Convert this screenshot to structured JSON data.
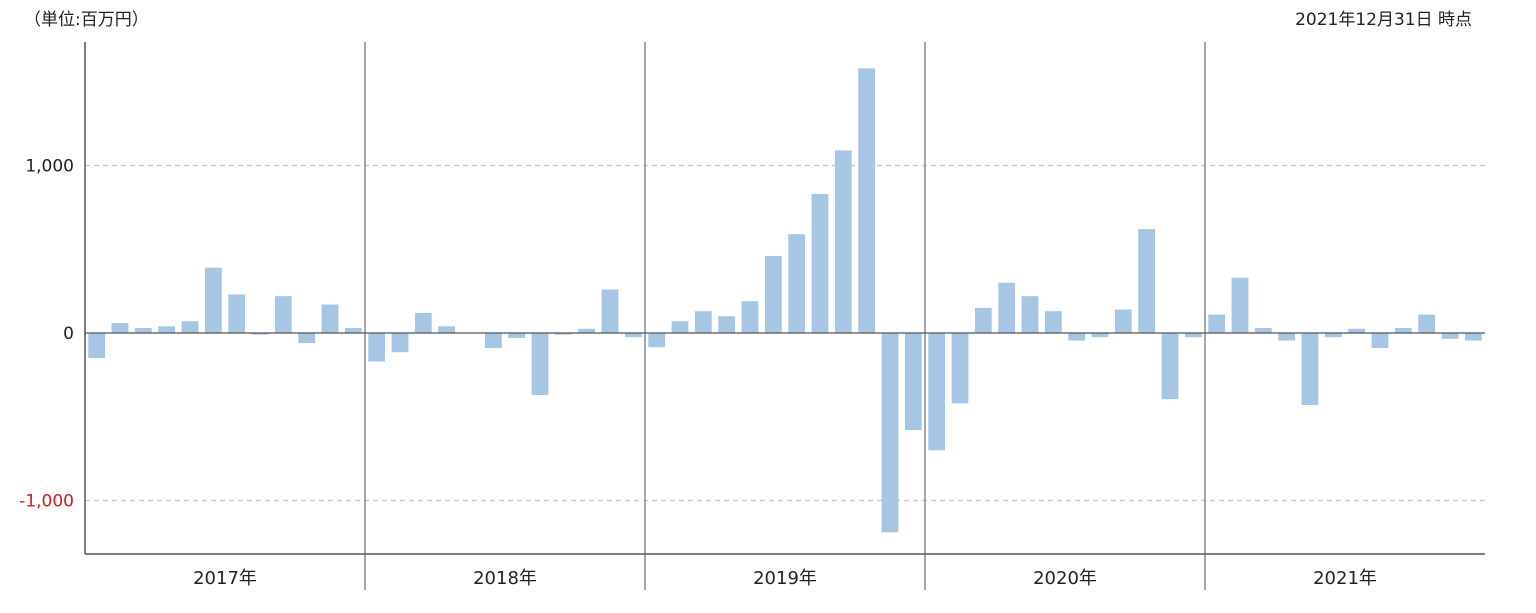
{
  "header": {
    "unit_label": "（単位:百万円）",
    "as_of": "2021年12月31日 時点"
  },
  "chart_data": {
    "type": "bar",
    "title": "",
    "xlabel": "",
    "ylabel": "",
    "ylim": [
      -1300,
      1740
    ],
    "grid": "horizontal-dashed",
    "legend": "none",
    "bar_color": "#a6c6e4",
    "negative_tick_color": "#d11a1a",
    "y_ticks": [
      {
        "value": 1000,
        "label": "1,000"
      },
      {
        "value": 0,
        "label": "0"
      },
      {
        "value": -1000,
        "label": "-1,000"
      }
    ],
    "groups": [
      {
        "label": "2017年",
        "values": [
          -150,
          60,
          30,
          40,
          70,
          390,
          230,
          -10,
          220,
          -60,
          170,
          30
        ]
      },
      {
        "label": "2018年",
        "values": [
          -170,
          -115,
          120,
          40,
          0,
          -90,
          -30,
          -370,
          -10,
          25,
          260,
          -25
        ]
      },
      {
        "label": "2019年",
        "values": [
          -85,
          70,
          130,
          100,
          190,
          460,
          590,
          830,
          1090,
          1580,
          -1190,
          -580
        ]
      },
      {
        "label": "2020年",
        "values": [
          -700,
          -420,
          150,
          300,
          220,
          130,
          -45,
          -25,
          140,
          620,
          -395,
          -25
        ]
      },
      {
        "label": "2021年",
        "values": [
          110,
          330,
          30,
          -45,
          -430,
          -25,
          25,
          -90,
          30,
          110,
          -35,
          -45
        ]
      }
    ]
  }
}
